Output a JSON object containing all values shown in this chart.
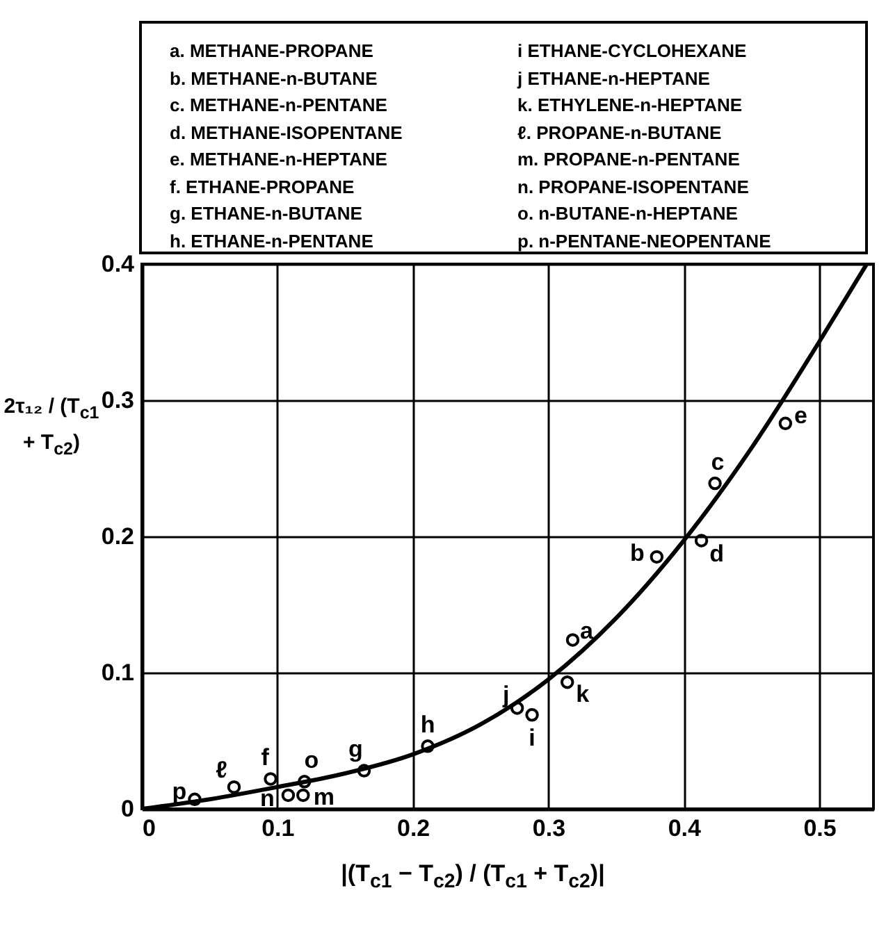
{
  "chart_data": {
    "type": "scatter",
    "xlabel": "|(T$_{c1}$ − T$_{c2}$) / (T$_{c1}$ + T$_{c2}$)|",
    "ylabel": "2τ₁₂ / (T$_{c1}$ + T$_{c2}$)",
    "xlim": [
      0,
      0.54
    ],
    "ylim": [
      0,
      0.4
    ],
    "xticks": [
      0,
      0.1,
      0.2,
      0.3,
      0.4,
      0.5
    ],
    "yticks": [
      0,
      0.1,
      0.2,
      0.3,
      0.4
    ],
    "grid": true,
    "marker": "circle",
    "series": [
      {
        "color": "#000000",
        "x": [
          0.318,
          0.38,
          0.423,
          0.413,
          0.475,
          0.095,
          0.164,
          0.211,
          0.288,
          0.277,
          0.314,
          0.068,
          0.119,
          0.108,
          0.12,
          0.039
        ],
        "values": [
          0.124,
          0.185,
          0.239,
          0.197,
          0.283,
          0.022,
          0.028,
          0.046,
          0.069,
          0.074,
          0.093,
          0.016,
          0.01,
          0.01,
          0.02,
          0.007
        ]
      },
      {
        "type": "line",
        "color": "#000000",
        "marker": "none",
        "x": [
          0,
          0.05,
          0.1,
          0.15,
          0.2,
          0.25,
          0.3,
          0.35,
          0.4,
          0.45,
          0.5,
          0.535
        ],
        "values": [
          0,
          0.007,
          0.016,
          0.026,
          0.04,
          0.062,
          0.095,
          0.14,
          0.197,
          0.265,
          0.343,
          0.4
        ]
      }
    ],
    "annotations": [
      {
        "text": "a",
        "x": 0.318,
        "y": 0.124
      },
      {
        "text": "b",
        "x": 0.38,
        "y": 0.185
      },
      {
        "text": "c",
        "x": 0.423,
        "y": 0.239
      },
      {
        "text": "d",
        "x": 0.413,
        "y": 0.197
      },
      {
        "text": "e",
        "x": 0.475,
        "y": 0.283
      },
      {
        "text": "f",
        "x": 0.095,
        "y": 0.022
      },
      {
        "text": "g",
        "x": 0.164,
        "y": 0.028
      },
      {
        "text": "h",
        "x": 0.211,
        "y": 0.046
      },
      {
        "text": "i",
        "x": 0.288,
        "y": 0.069
      },
      {
        "text": "j",
        "x": 0.277,
        "y": 0.074
      },
      {
        "text": "k",
        "x": 0.314,
        "y": 0.093
      },
      {
        "text": "ℓ",
        "x": 0.068,
        "y": 0.016
      },
      {
        "text": "m",
        "x": 0.119,
        "y": 0.01
      },
      {
        "text": "n",
        "x": 0.108,
        "y": 0.01
      },
      {
        "text": "o",
        "x": 0.12,
        "y": 0.02
      },
      {
        "text": "p",
        "x": 0.039,
        "y": 0.007
      },
      "a. METHANE-PROPANE",
      "b. METHANE-n-BUTANE",
      "c. METHANE-n-PENTANE",
      "d. METHANE-ISOPENTANE",
      "e. METHANE-n-HEPTANE",
      "f. ETHANE-PROPANE",
      "g. ETHANE-n-BUTANE",
      "h. ETHANE-n-PENTANE",
      "i ETHANE-CYCLOHEXANE",
      "j ETHANE-n-HEPTANE",
      "k. ETHYLENE-n-HEPTANE",
      "ℓ. PROPANE-n-BUTANE",
      "m. PROPANE-n-PENTANE",
      "n. PROPANE-ISOPENTANE",
      "o. n-BUTANE-n-HEPTANE",
      "p. n-PENTANE-NEOPENTANE"
    ]
  }
}
